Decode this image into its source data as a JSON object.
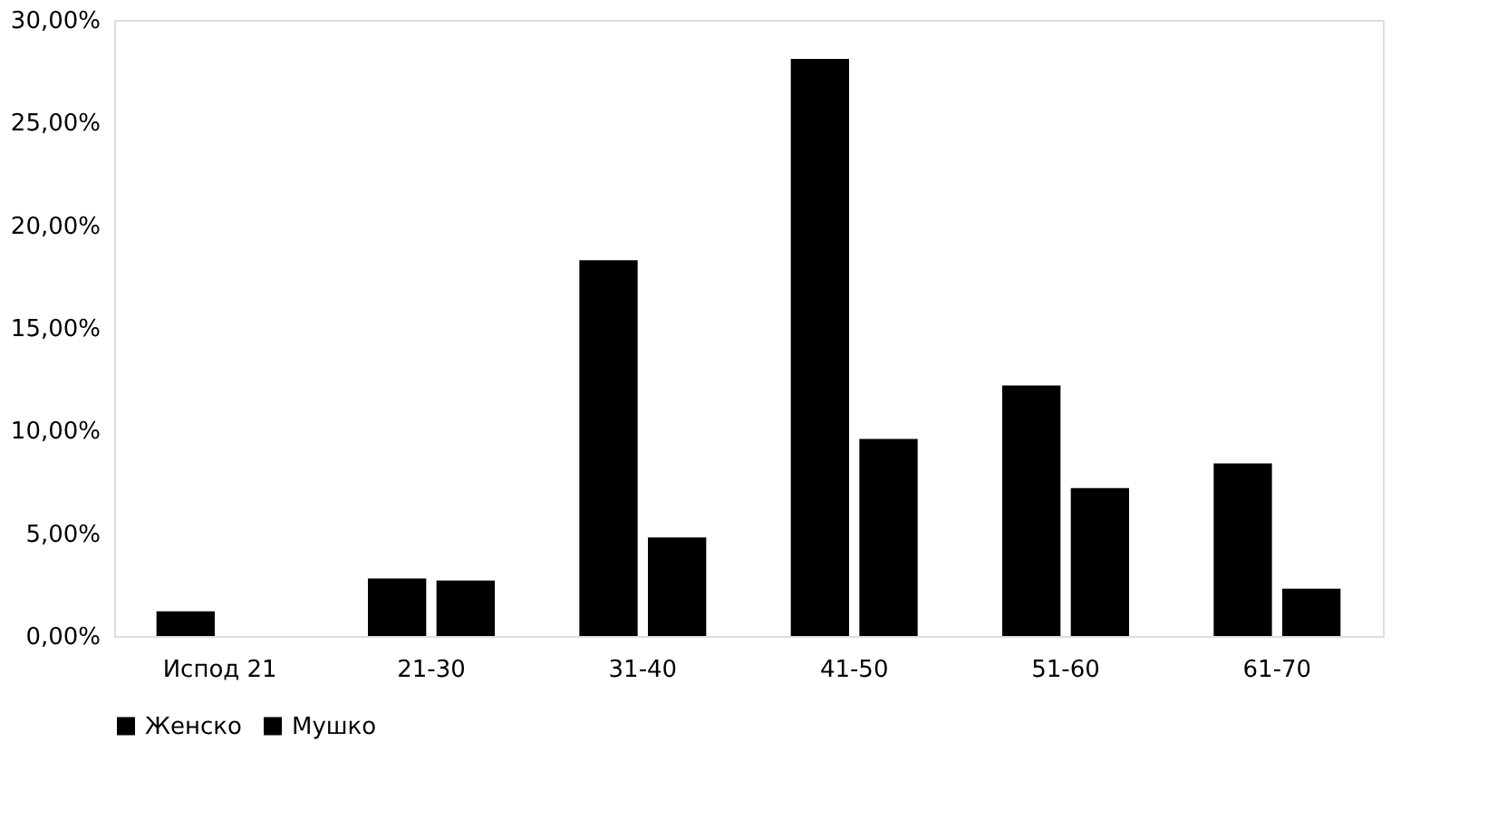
{
  "chart_data": {
    "type": "bar",
    "categories": [
      "Испод 21",
      "21-30",
      "31-40",
      "41-50",
      "51-60",
      "61-70"
    ],
    "series": [
      {
        "name": "Женско",
        "color": "#000000",
        "values": [
          1.2,
          2.8,
          18.3,
          28.1,
          12.2,
          8.4
        ]
      },
      {
        "name": "Мушко",
        "color": "#000000",
        "values": [
          null,
          2.7,
          4.8,
          9.6,
          7.2,
          2.3
        ]
      }
    ],
    "ylim": [
      0,
      30
    ],
    "yticks": [
      {
        "value": 0,
        "label": "0,00%"
      },
      {
        "value": 5,
        "label": "5,00%"
      },
      {
        "value": 10,
        "label": "10,00%"
      },
      {
        "value": 15,
        "label": "15,00%"
      },
      {
        "value": 20,
        "label": "20,00%"
      },
      {
        "value": 25,
        "label": "25,00%"
      },
      {
        "value": 30,
        "label": "30,00%"
      }
    ],
    "grid": false,
    "legend": "bottom"
  }
}
